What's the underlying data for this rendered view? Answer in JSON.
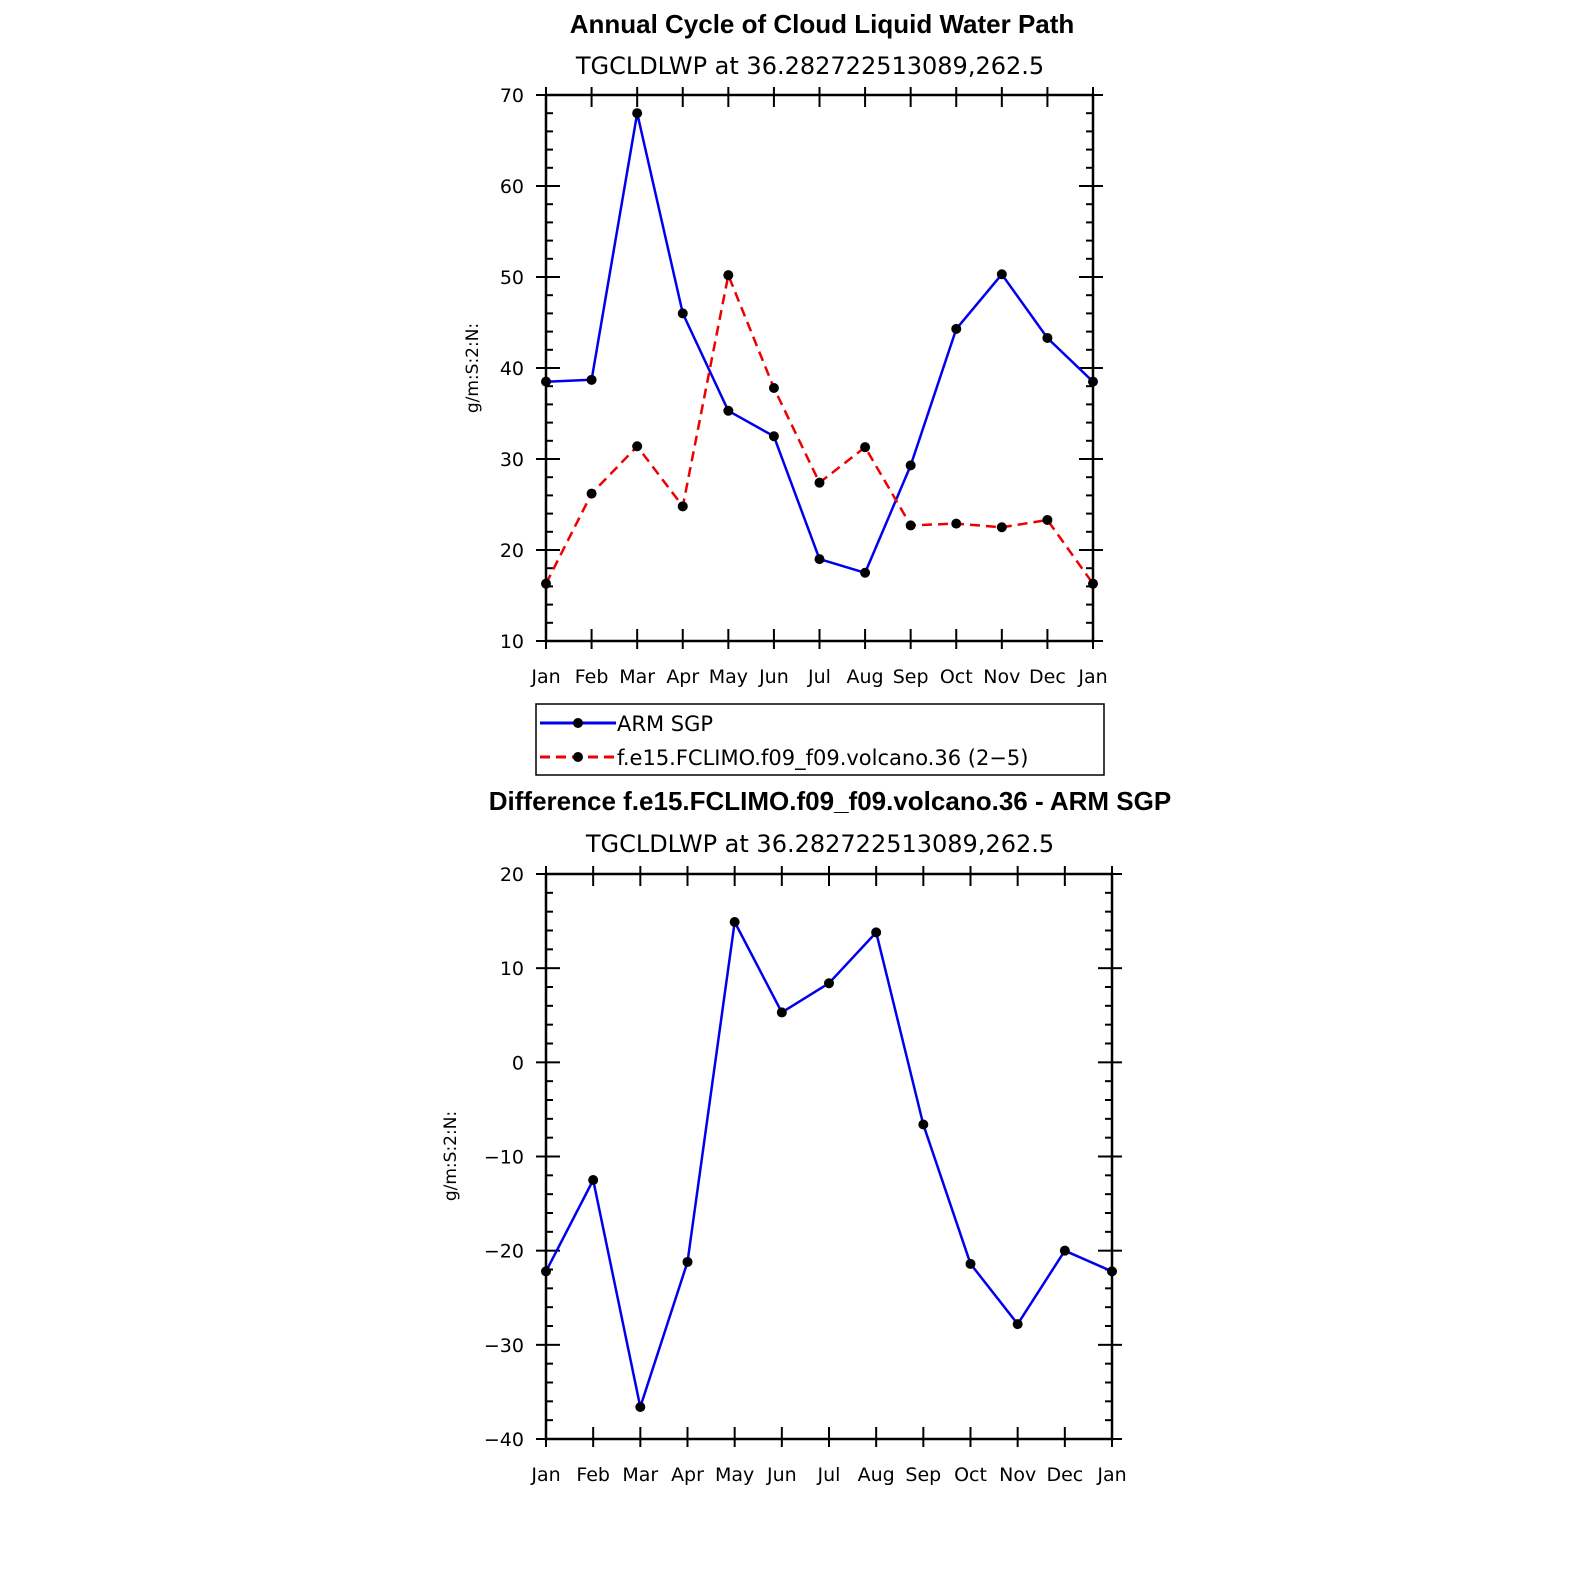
{
  "colors": {
    "obs": "#0000ee",
    "model": "#ee0000",
    "marker": "#000000",
    "axis": "#000000"
  },
  "chart_data": [
    {
      "type": "line",
      "title": "Annual Cycle of Cloud Liquid Water Path",
      "subtitle": "TGCLDLWP  at  36.282722513089,262.5",
      "ylabel": "g/m:S:2:N:",
      "ylim": [
        10,
        70
      ],
      "yticks": [
        10,
        20,
        30,
        40,
        50,
        60,
        70
      ],
      "yminor": 2,
      "categories": [
        "Jan",
        "Feb",
        "Mar",
        "Apr",
        "May",
        "Jun",
        "Jul",
        "Aug",
        "Sep",
        "Oct",
        "Nov",
        "Dec",
        "Jan"
      ],
      "series": [
        {
          "name": "ARM SGP",
          "color": "#0000ee",
          "dash": "solid",
          "values": [
            38.5,
            38.7,
            68.0,
            46.0,
            35.3,
            32.5,
            19.0,
            17.5,
            29.3,
            44.3,
            50.3,
            43.3,
            38.5
          ]
        },
        {
          "name": "f.e15.FCLIMO.f09_f09.volcano.36 (2−5)",
          "color": "#ee0000",
          "dash": "dashed",
          "values": [
            16.3,
            26.2,
            31.4,
            24.8,
            50.2,
            37.8,
            27.4,
            31.3,
            22.7,
            22.9,
            22.5,
            23.3,
            16.3
          ]
        }
      ],
      "legend": [
        {
          "label": "ARM SGP",
          "style": "solid",
          "color": "#0000ee"
        },
        {
          "label": "f.e15.FCLIMO.f09_f09.volcano.36 (2−5)",
          "style": "dashed",
          "color": "#ee0000"
        }
      ]
    },
    {
      "type": "line",
      "title": "Difference f.e15.FCLIMO.f09_f09.volcano.36 - ARM SGP",
      "subtitle": "TGCLDLWP  at  36.282722513089,262.5",
      "ylabel": "g/m:S:2:N:",
      "ylim": [
        -40,
        20
      ],
      "yticks": [
        -40,
        -30,
        -20,
        -10,
        0,
        10,
        20
      ],
      "ytick_labels": [
        "−40",
        "−30",
        "−20",
        "−10",
        "0",
        "10",
        "20"
      ],
      "yminor": 2,
      "categories": [
        "Jan",
        "Feb",
        "Mar",
        "Apr",
        "May",
        "Jun",
        "Jul",
        "Aug",
        "Sep",
        "Oct",
        "Nov",
        "Dec",
        "Jan"
      ],
      "series": [
        {
          "name": "Difference",
          "color": "#0000ee",
          "dash": "solid",
          "values": [
            -22.2,
            -12.5,
            -36.6,
            -21.2,
            14.9,
            5.3,
            8.4,
            13.8,
            -6.6,
            -21.4,
            -27.8,
            -20.0,
            -22.2
          ]
        }
      ]
    }
  ]
}
